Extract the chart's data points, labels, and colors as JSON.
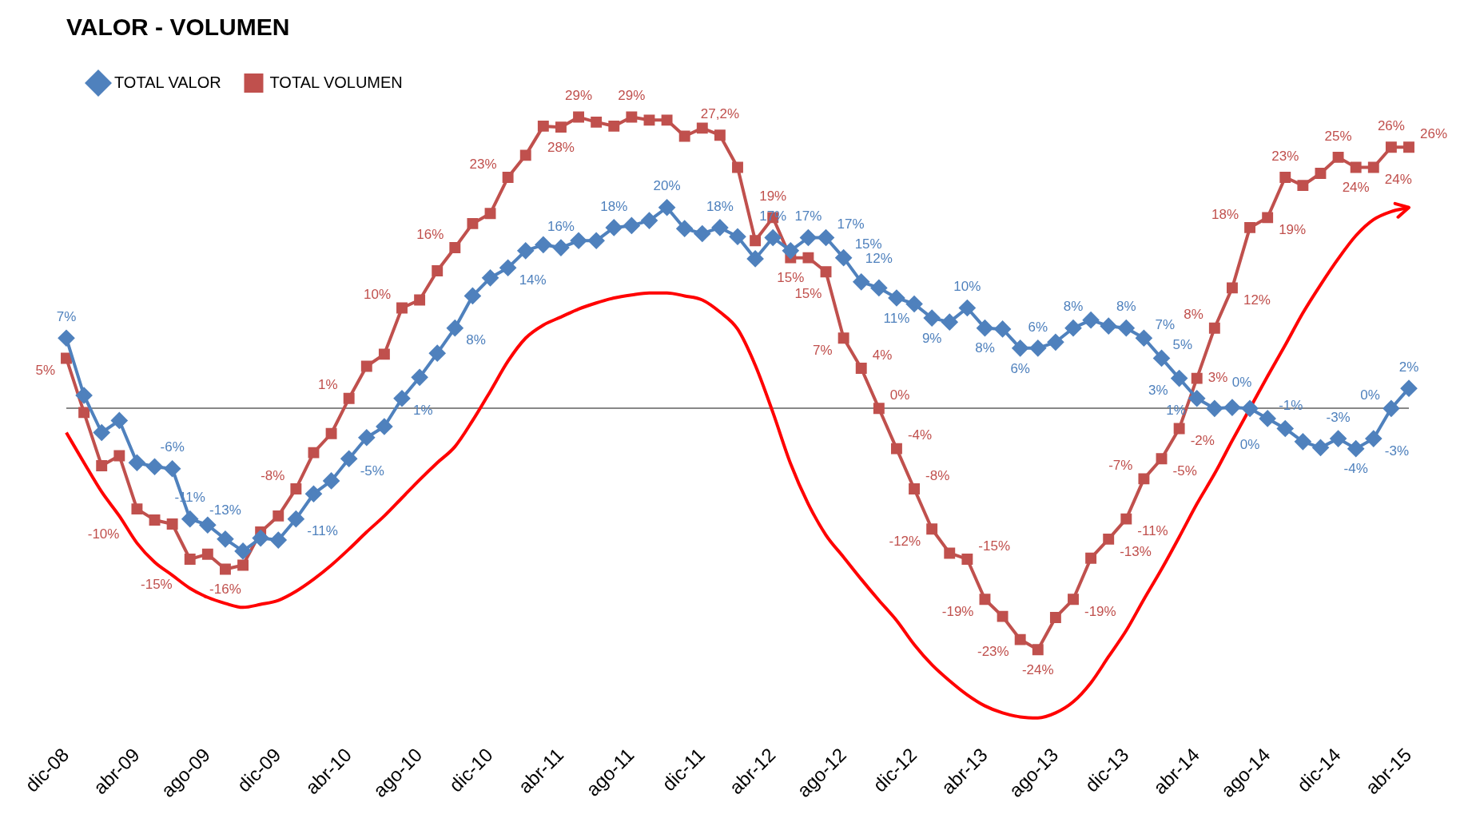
{
  "chart_data": {
    "type": "line",
    "title": "VALOR - VOLUMEN",
    "legend": "top left",
    "tick_labels": "x",
    "grid": false,
    "categories": [
      "dic-08",
      null,
      null,
      null,
      "abr-09",
      null,
      null,
      null,
      "ago-09",
      null,
      null,
      null,
      "dic-09",
      null,
      null,
      null,
      "abr-10",
      null,
      null,
      null,
      "ago-10",
      null,
      null,
      null,
      "dic-10",
      null,
      null,
      null,
      "abr-11",
      null,
      null,
      null,
      "ago-11",
      null,
      null,
      null,
      "dic-11",
      null,
      null,
      null,
      "abr-12",
      null,
      null,
      null,
      "ago-12",
      null,
      null,
      null,
      "dic-12",
      null,
      null,
      null,
      "abr-13",
      null,
      null,
      null,
      "ago-13",
      null,
      null,
      null,
      "dic-13",
      null,
      null,
      null,
      "abr-14",
      null,
      null,
      null,
      "ago-14",
      null,
      null,
      null,
      "dic-14",
      null,
      null,
      null,
      "abr-15"
    ],
    "series": [
      {
        "name": "TOTAL VALOR",
        "color": "#4f81bd",
        "marker": "diamond",
        "values": [
          7,
          1.3,
          -2.4,
          -1.2,
          -5.4,
          -5.8,
          -6,
          -11,
          -11.6,
          -13,
          -14.2,
          -12.9,
          -13.1,
          -11,
          -8.5,
          -7.2,
          -5,
          -2.9,
          -1.8,
          1,
          3.1,
          5.5,
          8,
          11.2,
          13,
          14,
          15.7,
          16.3,
          16,
          16.7,
          16.7,
          18,
          18.2,
          18.7,
          20,
          17.9,
          17.4,
          18,
          17.1,
          14.9,
          17,
          15.7,
          17,
          17,
          15,
          12.6,
          12,
          11,
          10.4,
          9,
          8.6,
          10,
          8,
          7.9,
          6,
          6,
          6.6,
          8,
          8.8,
          8.2,
          8,
          7,
          5,
          3,
          1,
          0,
          0.1,
          0,
          -1,
          -2,
          -3.3,
          -3.9,
          -3,
          -4,
          -3,
          0,
          2
        ],
        "value_labels": [
          "7%",
          null,
          null,
          null,
          null,
          null,
          "-6%",
          "-11%",
          null,
          "-13%",
          null,
          null,
          null,
          "-11%",
          null,
          null,
          "-5%",
          null,
          null,
          "1%",
          null,
          null,
          "8%",
          null,
          null,
          "14%",
          null,
          null,
          "16%",
          null,
          null,
          "18%",
          null,
          null,
          "20%",
          null,
          null,
          "18%",
          null,
          null,
          "17%",
          null,
          "17%",
          "17%",
          "15%",
          null,
          "12%",
          "11%",
          null,
          "9%",
          null,
          "10%",
          "8%",
          null,
          "6%",
          "6%",
          null,
          "8%",
          null,
          null,
          "8%",
          "7%",
          "5%",
          "3%",
          "1%",
          "0%",
          null,
          "0%",
          "-1%",
          null,
          null,
          null,
          "-3%",
          "-4%",
          "-3%",
          "0%",
          "2%"
        ]
      },
      {
        "name": "TOTAL VOLUMEN",
        "color": "#c0504d",
        "marker": "square",
        "values": [
          5,
          -0.4,
          -5.7,
          -4.7,
          -10,
          -11.1,
          -11.5,
          -15,
          -14.5,
          -16,
          -15.6,
          -12.3,
          -10.7,
          -8,
          -4.4,
          -2.5,
          1,
          4.2,
          5.4,
          10,
          10.8,
          13.7,
          16,
          18.4,
          19.4,
          23,
          25.2,
          28.1,
          28,
          29,
          28.5,
          28.1,
          29,
          28.7,
          28.7,
          27.1,
          27.9,
          27.2,
          24,
          16.7,
          19,
          15,
          15,
          13.6,
          7,
          4,
          0,
          -4,
          -8,
          -12,
          -14.4,
          -15,
          -19,
          -20.7,
          -23,
          -24,
          -20.8,
          -19,
          -14.9,
          -13,
          -11,
          -7,
          -5,
          -2,
          3,
          8,
          12,
          18,
          19,
          23,
          22.2,
          23.4,
          25,
          24,
          24,
          26,
          26
        ],
        "value_labels": [
          "5%",
          null,
          null,
          null,
          "-10%",
          null,
          null,
          "-15%",
          null,
          "-16%",
          null,
          null,
          null,
          "-8%",
          null,
          null,
          "1%",
          null,
          null,
          "10%",
          null,
          null,
          "16%",
          null,
          null,
          "23%",
          null,
          null,
          "28%",
          "29%",
          null,
          null,
          "29%",
          null,
          null,
          null,
          null,
          "27,2%",
          null,
          null,
          "19%",
          "15%",
          "15%",
          null,
          "7%",
          "4%",
          "0%",
          "-4%",
          "-8%",
          "-12%",
          null,
          "-15%",
          "-19%",
          null,
          "-23%",
          "-24%",
          null,
          "-19%",
          null,
          "-13%",
          "-11%",
          "-7%",
          "-5%",
          "-2%",
          "3%",
          "8%",
          "12%",
          "18%",
          "19%",
          "23%",
          null,
          null,
          "25%",
          "24%",
          "24%",
          "26%",
          "26%"
        ]
      },
      {
        "type": "line",
        "color": "#ff0000",
        "marker": "none",
        "values": [
          -2.4,
          -5.4,
          -8.3,
          -10.7,
          -13.4,
          -15.3,
          -16.6,
          -17.9,
          -18.8,
          -19.4,
          -19.8,
          -19.5,
          -19.1,
          -18.2,
          -17,
          -15.6,
          -14,
          -12.3,
          -10.7,
          -8.9,
          -7.1,
          -5.4,
          -3.8,
          -1.2,
          1.7,
          4.7,
          7,
          8.3,
          9.1,
          9.9,
          10.5,
          11,
          11.3,
          11.5,
          11.5,
          11.2,
          10.8,
          9.6,
          7.9,
          4.3,
          -0.4,
          -5.5,
          -9.5,
          -12.6,
          -14.8,
          -17,
          -19.1,
          -21.1,
          -23.5,
          -25.5,
          -27.1,
          -28.5,
          -29.6,
          -30.3,
          -30.7,
          -30.8,
          -30.3,
          -29.2,
          -27.3,
          -24.7,
          -22.1,
          -19,
          -16,
          -12.8,
          -9.5,
          -6.5,
          -3.2,
          0,
          3.2,
          6.3,
          9.5,
          12.3,
          14.9,
          17.2,
          18.8,
          19.6,
          20
        ]
      }
    ]
  }
}
